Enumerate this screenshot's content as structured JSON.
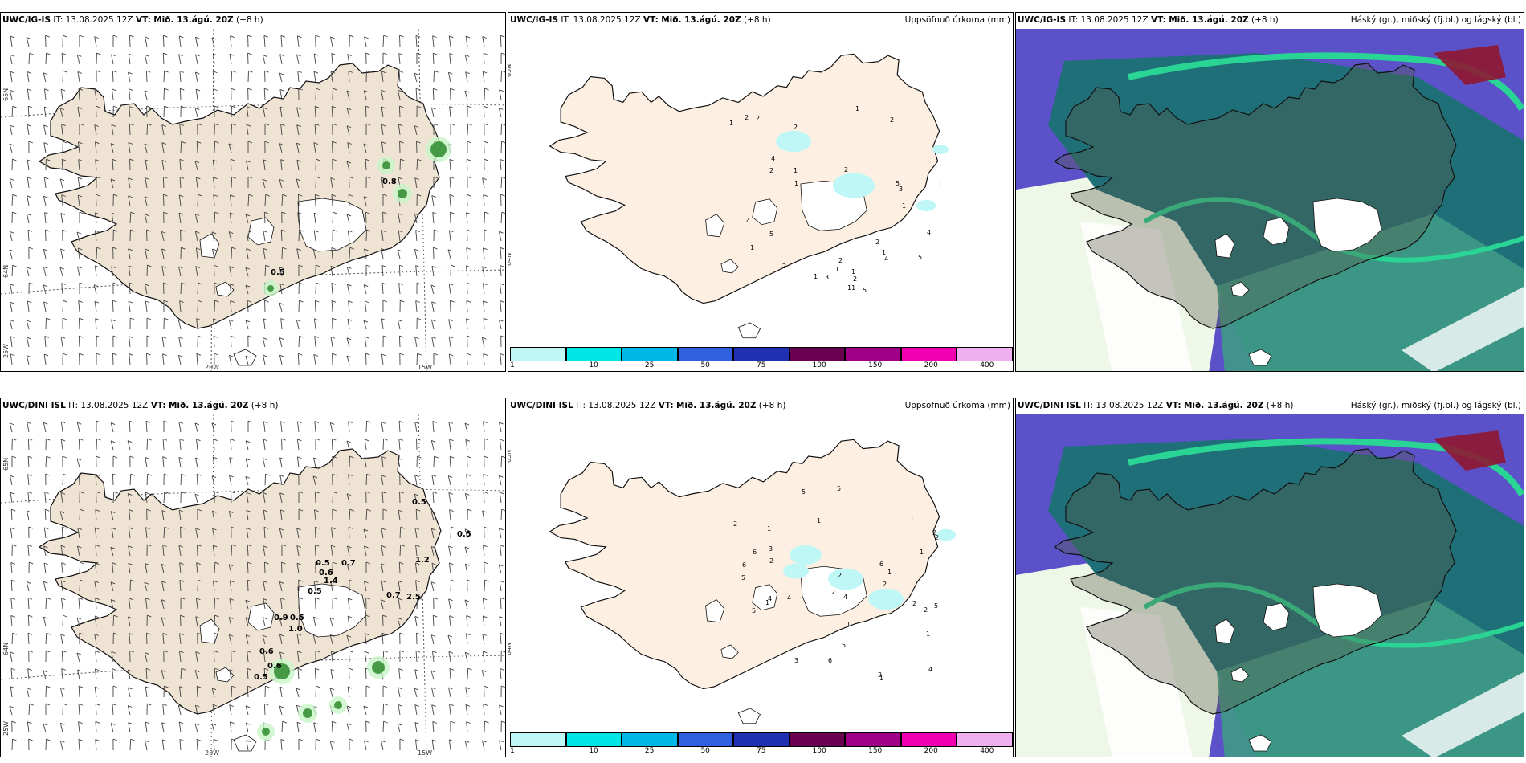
{
  "panels": [
    {
      "id": "p1",
      "model": "UWC/IG-IS",
      "it": "IT: 13.08.2025 12Z",
      "vt_label": "VT:",
      "vt": "Mið. 13.ágú. 20Z",
      "lead": "(+8 h)",
      "right": ""
    },
    {
      "id": "p2",
      "model": "UWC/IG-IS",
      "it": "IT: 13.08.2025 12Z",
      "vt_label": "VT:",
      "vt": "Mið. 13.ágú. 20Z",
      "lead": "(+8 h)",
      "right": "Uppsöfnuð úrkoma (mm)"
    },
    {
      "id": "p3",
      "model": "UWC/IG-IS",
      "it": "IT: 13.08.2025 12Z",
      "vt_label": "VT:",
      "vt": "Mið. 13.ágú. 20Z",
      "lead": "(+8 h)",
      "right": "Háský (gr.), miðský (fj.bl.) og lágský (bl.)"
    },
    {
      "id": "p4",
      "model": "UWC/DINI ISL",
      "it": "IT: 13.08.2025 12Z",
      "vt_label": "VT:",
      "vt": "Mið. 13.ágú. 20Z",
      "lead": "(+8 h)",
      "right": ""
    },
    {
      "id": "p5",
      "model": "UWC/DINI ISL",
      "it": "IT: 13.08.2025 12Z",
      "vt_label": "VT:",
      "vt": "Mið. 13.ágú. 20Z",
      "lead": "(+8 h)",
      "right": "Uppsöfnuð úrkoma (mm)"
    },
    {
      "id": "p6",
      "model": "UWC/DINI ISL",
      "it": "IT: 13.08.2025 12Z",
      "vt_label": "VT:",
      "vt": "Mið. 13.ágú. 20Z",
      "lead": "(+8 h)",
      "right": "Háský (gr.), miðský (fj.bl.) og lágský (bl.)"
    }
  ],
  "grid": {
    "lon1": "20W",
    "lon2": "15W",
    "lat1": "65N",
    "lat2": "64N",
    "lat0": "25W"
  },
  "colorbar": {
    "labels": [
      "1",
      "10",
      "25",
      "50",
      "75",
      "100",
      "150",
      "200",
      "400"
    ],
    "colors": [
      "#bff7f7",
      "#00e5e5",
      "#00b7e8",
      "#3060e0",
      "#2030b0",
      "#6a0050",
      "#a00088",
      "#f000b0",
      "#f0b0f0"
    ]
  },
  "wind_values_top": [
    "0.8",
    "0.5"
  ],
  "wind_values_bottom": [
    "0.5",
    "0.5",
    "0.7",
    "0.5",
    "1.2",
    "0.6",
    "1.4",
    "0.7",
    "2.5",
    "0.5",
    "0.9",
    "0.5",
    "1.0",
    "0.6",
    "0.6",
    "0.5"
  ],
  "precip_top": [
    "1",
    "2",
    "2",
    "1",
    "1",
    "1",
    "1",
    "4",
    "5",
    "4",
    "5",
    "5",
    "3",
    "5",
    "2",
    "2",
    "1",
    "4",
    "4",
    "3",
    "2",
    "1",
    "2",
    "1",
    "1",
    "2",
    "1",
    "11",
    "2",
    "1",
    "2",
    "2"
  ],
  "precip_bottom": [
    "1",
    "2",
    "1",
    "1",
    "1",
    "2",
    "2",
    "4",
    "4",
    "6",
    "5",
    "6",
    "1",
    "1",
    "5",
    "6",
    "5",
    "5",
    "4",
    "6",
    "2",
    "2",
    "2",
    "4",
    "3",
    "5",
    "5",
    "3",
    "1",
    "1",
    "2",
    "2",
    "2",
    "1",
    "2"
  ]
}
